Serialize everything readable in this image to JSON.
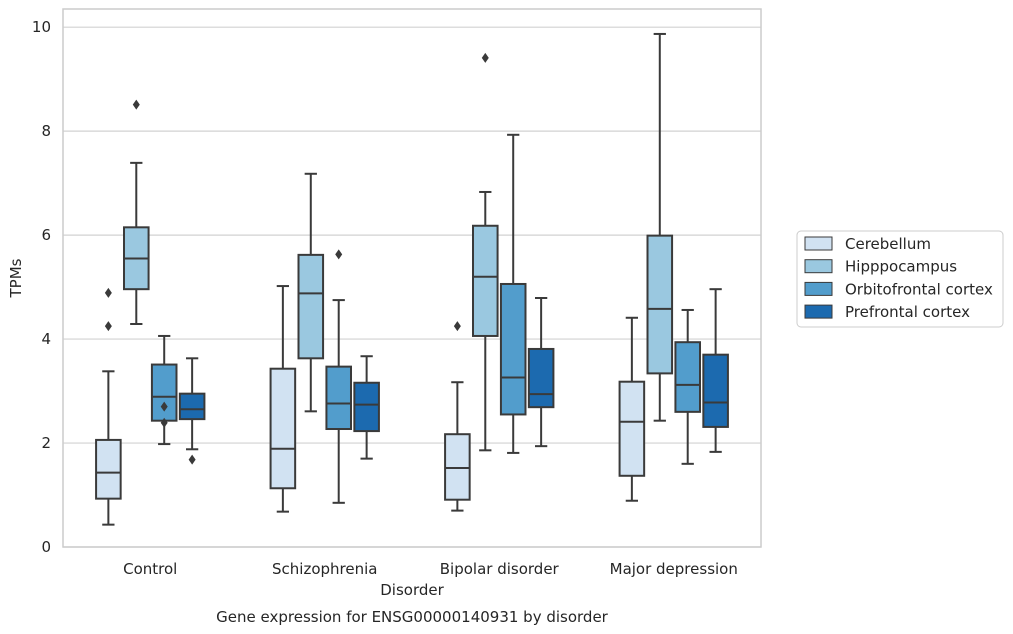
{
  "chart_data": {
    "type": "box",
    "title": "",
    "caption": "Gene expression for ENSG00000140931 by disorder",
    "xlabel": "Disorder",
    "ylabel": "TPMs",
    "ylim": [
      0,
      10.35
    ],
    "yticks": [
      "0",
      "2",
      "4",
      "6",
      "8",
      "10"
    ],
    "grid": "horizontal",
    "legend_position": "right",
    "categories": [
      "Control",
      "Schizophrenia",
      "Bipolar disorder",
      "Major depression"
    ],
    "series": [
      {
        "name": "Cerebellum",
        "color": "#d1e2f2",
        "boxes": [
          {
            "whislo": 0.43,
            "q1": 0.93,
            "med": 1.43,
            "q3": 2.06,
            "whishi": 3.38,
            "fliers": [
              4.25,
              4.89
            ]
          },
          {
            "whislo": 0.68,
            "q1": 1.13,
            "med": 1.89,
            "q3": 3.43,
            "whishi": 5.02,
            "fliers": []
          },
          {
            "whislo": 0.7,
            "q1": 0.91,
            "med": 1.52,
            "q3": 2.17,
            "whishi": 3.17,
            "fliers": [
              4.25
            ]
          },
          {
            "whislo": 0.89,
            "q1": 1.37,
            "med": 2.41,
            "q3": 3.18,
            "whishi": 4.41,
            "fliers": []
          }
        ]
      },
      {
        "name": "Hipppocampus",
        "color": "#9ac8e0",
        "boxes": [
          {
            "whislo": 4.29,
            "q1": 4.96,
            "med": 5.55,
            "q3": 6.15,
            "whishi": 7.39,
            "fliers": [
              8.51
            ]
          },
          {
            "whislo": 2.61,
            "q1": 3.63,
            "med": 4.88,
            "q3": 5.62,
            "whishi": 7.18,
            "fliers": []
          },
          {
            "whislo": 1.86,
            "q1": 4.06,
            "med": 5.2,
            "q3": 6.18,
            "whishi": 6.83,
            "fliers": [
              9.41
            ]
          },
          {
            "whislo": 2.43,
            "q1": 3.34,
            "med": 4.58,
            "q3": 5.99,
            "whishi": 9.87,
            "fliers": []
          }
        ]
      },
      {
        "name": "Orbitofrontal cortex",
        "color": "#529dcc",
        "boxes": [
          {
            "whislo": 1.98,
            "q1": 2.43,
            "med": 2.89,
            "q3": 3.51,
            "whishi": 4.06,
            "fliers": [
              2.39,
              2.7
            ]
          },
          {
            "whislo": 0.85,
            "q1": 2.27,
            "med": 2.76,
            "q3": 3.47,
            "whishi": 4.75,
            "fliers": [
              5.63
            ]
          },
          {
            "whislo": 1.81,
            "q1": 2.55,
            "med": 3.26,
            "q3": 5.06,
            "whishi": 7.93,
            "fliers": []
          },
          {
            "whislo": 1.6,
            "q1": 2.6,
            "med": 3.12,
            "q3": 3.94,
            "whishi": 4.56,
            "fliers": []
          }
        ]
      },
      {
        "name": "Prefrontal cortex",
        "color": "#1c6aaf",
        "boxes": [
          {
            "whislo": 1.88,
            "q1": 2.46,
            "med": 2.65,
            "q3": 2.95,
            "whishi": 3.63,
            "fliers": [
              1.68
            ]
          },
          {
            "whislo": 1.7,
            "q1": 2.23,
            "med": 2.74,
            "q3": 3.16,
            "whishi": 3.67,
            "fliers": []
          },
          {
            "whislo": 1.94,
            "q1": 2.69,
            "med": 2.94,
            "q3": 3.81,
            "whishi": 4.79,
            "fliers": []
          },
          {
            "whislo": 1.83,
            "q1": 2.31,
            "med": 2.78,
            "q3": 3.7,
            "whishi": 4.96,
            "fliers": []
          }
        ]
      }
    ]
  }
}
